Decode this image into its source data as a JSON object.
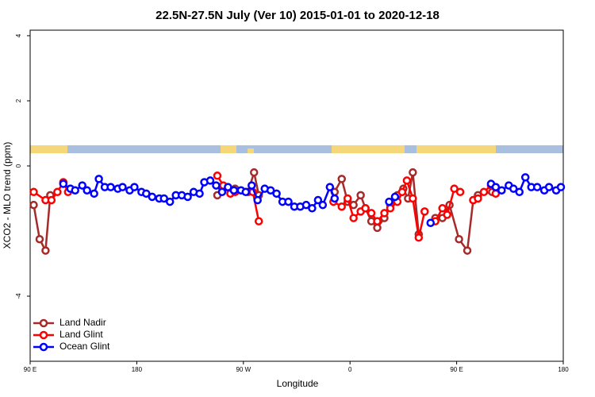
{
  "chart_data": {
    "type": "line",
    "title": "22.5N-27.5N July (Ver 10)   2015-01-01 to 2020-12-18",
    "x_label": "Longitude",
    "y_label": "XCO2 - MLO trend (ppm)",
    "xlim": [
      90,
      540
    ],
    "ylim": [
      -6,
      4.17
    ],
    "xticks": [
      {
        "value": 90,
        "label": "90 E"
      },
      180,
      {
        "value": 270,
        "label": "90 W"
      },
      {
        "value": 360,
        "label": "0"
      },
      {
        "value": 450,
        "label": "90 E"
      },
      {
        "value": 540,
        "label": "180"
      }
    ],
    "yticks": [
      -4,
      0,
      2,
      4
    ],
    "legend": "bottom-left",
    "series": [
      {
        "name": "Land Nadir",
        "color": "#a52a2a",
        "x": [
          93,
          98,
          103,
          107,
          177,
          248,
          253,
          263,
          274,
          279,
          283,
          320,
          347,
          353,
          358,
          363,
          369,
          373,
          378,
          383,
          389,
          394,
          400,
          405,
          409,
          413,
          418,
          425,
          432,
          438,
          444,
          452,
          459,
          464,
          468,
          480
        ],
        "values": [
          -1.2,
          -2.25,
          -2.6,
          -0.9,
          null,
          -0.9,
          -0.7,
          -0.7,
          -0.8,
          -0.2,
          -0.9,
          null,
          -0.8,
          -0.4,
          -1.1,
          -1.2,
          -0.9,
          -1.3,
          -1.7,
          -1.9,
          -1.6,
          -1.2,
          -0.9,
          -0.7,
          -1.0,
          -0.2,
          -2.1,
          null,
          -1.6,
          -1.6,
          -1.2,
          -2.25,
          -2.6,
          -1.05,
          -0.9,
          -0.8
        ]
      },
      {
        "name": "Land Glint",
        "color": "#ff0000",
        "x": [
          93,
          103,
          108,
          113,
          118,
          122,
          200,
          248,
          253,
          259,
          263,
          270,
          278,
          283,
          320,
          346,
          353,
          358,
          363,
          369,
          373,
          378,
          383,
          389,
          394,
          400,
          404,
          408,
          413,
          418,
          423,
          428,
          432,
          438,
          442,
          448,
          453,
          458,
          464,
          468,
          473,
          479,
          483
        ],
        "values": [
          -0.8,
          -1.05,
          -1.05,
          -0.8,
          -0.5,
          -0.8,
          null,
          -0.3,
          -0.6,
          -0.85,
          -0.8,
          null,
          -0.8,
          -1.7,
          null,
          -1.1,
          -1.25,
          -1.0,
          -1.6,
          -1.4,
          -1.3,
          -1.45,
          -1.7,
          -1.45,
          -1.3,
          -1.1,
          -0.8,
          -0.45,
          -1.0,
          -2.2,
          -1.4,
          null,
          -1.7,
          -1.3,
          -1.5,
          -0.7,
          -0.8,
          null,
          -1.05,
          -1.0,
          -0.8,
          -0.6,
          -0.85
        ]
      },
      {
        "name": "Ocean Glint",
        "color": "#0000ff",
        "x": [
          118,
          124,
          128,
          134,
          138,
          144,
          148,
          153,
          158,
          164,
          168,
          174,
          178,
          184,
          188,
          193,
          199,
          203,
          208,
          213,
          218,
          223,
          228,
          233,
          237,
          242,
          247,
          252,
          257,
          262,
          268,
          272,
          277,
          282,
          288,
          293,
          298,
          303,
          308,
          313,
          318,
          323,
          328,
          333,
          337,
          343,
          347,
          370,
          393,
          398,
          410,
          428,
          440,
          479,
          483,
          488,
          494,
          498,
          503,
          508,
          513,
          518,
          524,
          528,
          534,
          538
        ],
        "values": [
          -0.55,
          -0.7,
          -0.75,
          -0.6,
          -0.75,
          -0.85,
          -0.4,
          -0.65,
          -0.65,
          -0.7,
          -0.65,
          -0.75,
          -0.65,
          -0.8,
          -0.85,
          -0.95,
          -1.0,
          -1.0,
          -1.1,
          -0.9,
          -0.9,
          -0.95,
          -0.8,
          -0.85,
          -0.5,
          -0.45,
          -0.6,
          -0.8,
          -0.65,
          -0.75,
          -0.75,
          -0.8,
          -0.6,
          -1.05,
          -0.7,
          -0.75,
          -0.85,
          -1.1,
          -1.1,
          -1.25,
          -1.25,
          -1.2,
          -1.3,
          -1.05,
          -1.2,
          -0.65,
          -1.0,
          null,
          -1.1,
          -0.95,
          null,
          -1.75,
          null,
          -0.55,
          -0.65,
          -0.75,
          -0.6,
          -0.7,
          -0.8,
          -0.35,
          -0.65,
          -0.65,
          -0.75,
          -0.65,
          -0.75,
          -0.65
        ]
      }
    ]
  }
}
